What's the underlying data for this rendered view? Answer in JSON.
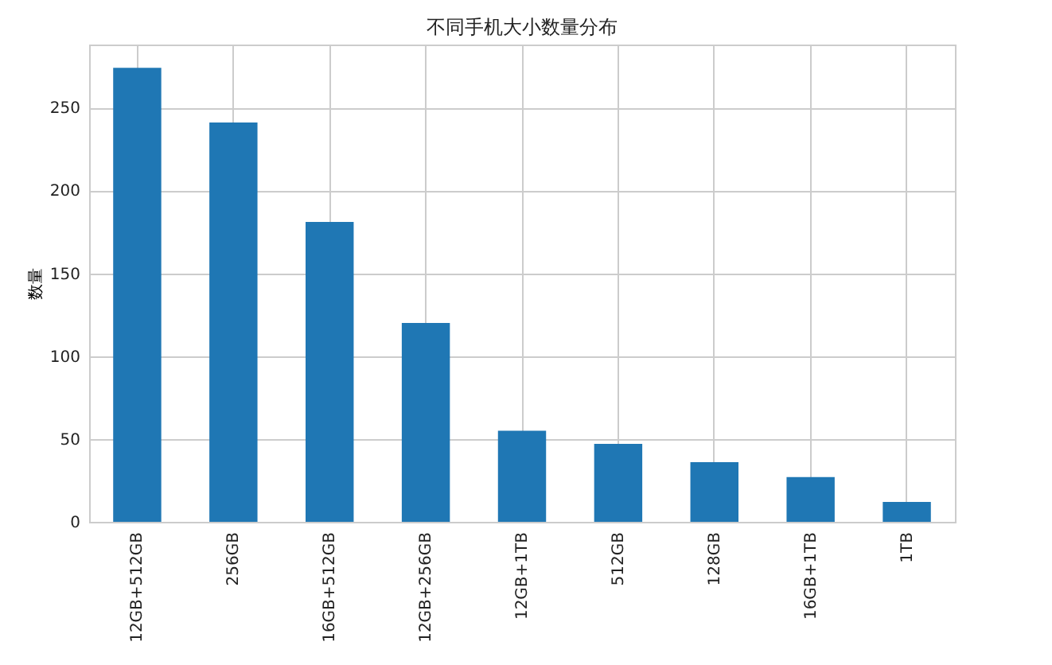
{
  "chart_data": {
    "type": "bar",
    "title": "不同手机大小数量分布",
    "ylabel": "数量",
    "categories": [
      "12GB+512GB",
      "256GB",
      "16GB+512GB",
      "12GB+256GB",
      "12GB+1TB",
      "512GB",
      "128GB",
      "16GB+1TB",
      "1TB"
    ],
    "values": [
      274,
      241,
      181,
      120,
      55,
      47,
      36,
      27,
      12
    ],
    "color": "#1f77b4",
    "ylim": [
      0,
      288
    ],
    "yticks": [
      0,
      50,
      100,
      150,
      200,
      250
    ],
    "grid": true
  }
}
